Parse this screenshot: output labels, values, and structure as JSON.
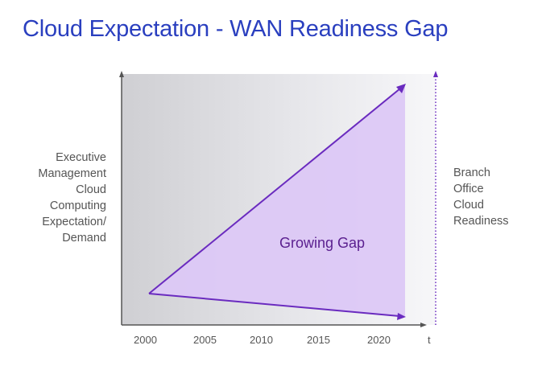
{
  "title": "Cloud Expectation - WAN Readiness Gap",
  "left_axis_label": [
    "Executive",
    "Management",
    "Cloud",
    "Computing",
    "Expectation/",
    "Demand"
  ],
  "right_axis_label": [
    "Branch",
    "Office",
    "Cloud",
    "Readiness"
  ],
  "x_ticks": [
    "2000",
    "2005",
    "2010",
    "2015",
    "2020"
  ],
  "x_axis_symbol": "t",
  "gap_label": "Growing Gap",
  "colors": {
    "title": "#2a3fbf",
    "gap_fill": "#dcc8f5",
    "gap_lines": "#6a2bbf",
    "axis": "#555555"
  }
}
